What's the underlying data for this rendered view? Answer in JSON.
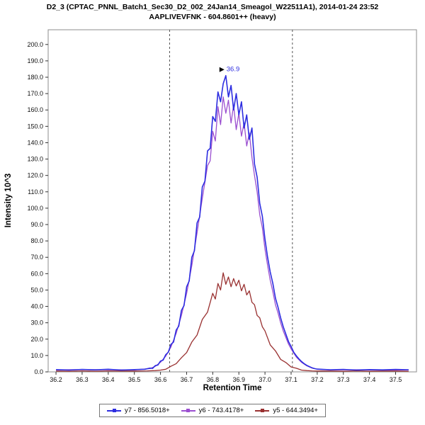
{
  "title": {
    "line1": "D2_3 (CPTAC_PNNL_Batch1_Sec30_D2_002_24Jan14_Smeagol_W22511A1), 2014-01-24 23:52",
    "line2": "AAPLIVEVFNK - 604.8601++ (heavy)"
  },
  "chart_data": {
    "type": "line",
    "title": "D2_3 (CPTAC_PNNL_Batch1_Sec30_D2_002_24Jan14_Smeagol_W22511A1), 2014-01-24 23:52 / AAPLIVEVFNK - 604.8601++ (heavy)",
    "xlabel": "Retention Time",
    "ylabel": "Intensity 10^3",
    "xlim": [
      36.17,
      37.58
    ],
    "ylim": [
      0,
      209
    ],
    "x_ticks": [
      36.2,
      36.3,
      36.4,
      36.5,
      36.6,
      36.7,
      36.8,
      36.9,
      37.0,
      37.1,
      37.2,
      37.3,
      37.4,
      37.5
    ],
    "y_ticks": [
      0,
      10,
      20,
      30,
      40,
      50,
      60,
      70,
      80,
      90,
      100,
      110,
      120,
      130,
      140,
      150,
      160,
      170,
      180,
      190,
      200
    ],
    "grid": false,
    "legend_position": "bottom",
    "boundaries": [
      36.635,
      37.105
    ],
    "boundary_color": "#555555",
    "annotation": {
      "x": 36.85,
      "y": 181,
      "label": "36.9",
      "label_color": "#2d2de0",
      "marker_color": "#000000"
    },
    "series": [
      {
        "name": "y7 - 856.5018+",
        "color": "#2d2de0",
        "points": [
          [
            36.2,
            1.4
          ],
          [
            36.25,
            1.1
          ],
          [
            36.3,
            1.5
          ],
          [
            36.35,
            1.2
          ],
          [
            36.4,
            1.6
          ],
          [
            36.45,
            1.1
          ],
          [
            36.5,
            1.4
          ],
          [
            36.54,
            1.6
          ],
          [
            36.56,
            2.3
          ],
          [
            36.57,
            2.1
          ],
          [
            36.58,
            3.8
          ],
          [
            36.59,
            4.2
          ],
          [
            36.6,
            6.6
          ],
          [
            36.61,
            7.2
          ],
          [
            36.62,
            10.5
          ],
          [
            36.63,
            12.0
          ],
          [
            36.64,
            16.8
          ],
          [
            36.65,
            18.2
          ],
          [
            36.66,
            25.5
          ],
          [
            36.67,
            28.0
          ],
          [
            36.68,
            37.5
          ],
          [
            36.69,
            40.5
          ],
          [
            36.7,
            52.0
          ],
          [
            36.71,
            55.5
          ],
          [
            36.72,
            70.0
          ],
          [
            36.73,
            74.0
          ],
          [
            36.74,
            91.0
          ],
          [
            36.75,
            94.5
          ],
          [
            36.76,
            113.0
          ],
          [
            36.77,
            116.5
          ],
          [
            36.78,
            135.0
          ],
          [
            36.79,
            136.5
          ],
          [
            36.8,
            156.0
          ],
          [
            36.81,
            153.0
          ],
          [
            36.82,
            171.0
          ],
          [
            36.83,
            165.0
          ],
          [
            36.84,
            176.0
          ],
          [
            36.85,
            181.0
          ],
          [
            36.86,
            168.0
          ],
          [
            36.87,
            175.0
          ],
          [
            36.88,
            160.0
          ],
          [
            36.89,
            170.0
          ],
          [
            36.9,
            157.0
          ],
          [
            36.91,
            165.0
          ],
          [
            36.92,
            149.0
          ],
          [
            36.93,
            157.0
          ],
          [
            36.94,
            142.0
          ],
          [
            36.95,
            149.0
          ],
          [
            36.96,
            127.0
          ],
          [
            36.97,
            119.0
          ],
          [
            36.98,
            103.0
          ],
          [
            36.99,
            95.0
          ],
          [
            37.0,
            81.0
          ],
          [
            37.01,
            70.0
          ],
          [
            37.02,
            61.0
          ],
          [
            37.03,
            54.0
          ],
          [
            37.04,
            45.0
          ],
          [
            37.05,
            39.5
          ],
          [
            37.06,
            33.0
          ],
          [
            37.07,
            27.5
          ],
          [
            37.08,
            23.0
          ],
          [
            37.09,
            18.5
          ],
          [
            37.1,
            15.5
          ],
          [
            37.11,
            12.0
          ],
          [
            37.12,
            9.8
          ],
          [
            37.13,
            7.9
          ],
          [
            37.14,
            6.3
          ],
          [
            37.15,
            5.0
          ],
          [
            37.16,
            4.0
          ],
          [
            37.17,
            3.2
          ],
          [
            37.18,
            2.5
          ],
          [
            37.19,
            2.0
          ],
          [
            37.2,
            1.7
          ],
          [
            37.25,
            1.3
          ],
          [
            37.3,
            1.5
          ],
          [
            37.35,
            1.1
          ],
          [
            37.4,
            1.4
          ],
          [
            37.45,
            1.2
          ],
          [
            37.5,
            1.5
          ],
          [
            37.55,
            1.3
          ]
        ]
      },
      {
        "name": "y6 - 743.4178+",
        "color": "#9b4fd0",
        "points": [
          [
            36.2,
            1.2
          ],
          [
            36.3,
            1.4
          ],
          [
            36.4,
            1.3
          ],
          [
            36.5,
            1.2
          ],
          [
            36.56,
            2.0
          ],
          [
            36.58,
            3.4
          ],
          [
            36.6,
            5.9
          ],
          [
            36.62,
            9.6
          ],
          [
            36.64,
            15.2
          ],
          [
            36.66,
            23.5
          ],
          [
            36.68,
            34.5
          ],
          [
            36.7,
            48.0
          ],
          [
            36.72,
            65.0
          ],
          [
            36.74,
            85.0
          ],
          [
            36.76,
            106.0
          ],
          [
            36.78,
            126.0
          ],
          [
            36.79,
            129.0
          ],
          [
            36.8,
            147.0
          ],
          [
            36.81,
            141.0
          ],
          [
            36.82,
            162.0
          ],
          [
            36.83,
            151.0
          ],
          [
            36.84,
            168.0
          ],
          [
            36.85,
            158.0
          ],
          [
            36.86,
            166.0
          ],
          [
            36.87,
            152.0
          ],
          [
            36.88,
            163.0
          ],
          [
            36.89,
            148.0
          ],
          [
            36.9,
            158.0
          ],
          [
            36.91,
            144.0
          ],
          [
            36.92,
            152.0
          ],
          [
            36.93,
            138.0
          ],
          [
            36.94,
            146.0
          ],
          [
            36.95,
            131.0
          ],
          [
            36.96,
            120.0
          ],
          [
            36.97,
            110.0
          ],
          [
            36.98,
            96.0
          ],
          [
            36.99,
            88.0
          ],
          [
            37.0,
            75.0
          ],
          [
            37.01,
            65.0
          ],
          [
            37.02,
            56.0
          ],
          [
            37.03,
            49.0
          ],
          [
            37.04,
            41.0
          ],
          [
            37.05,
            36.0
          ],
          [
            37.06,
            30.0
          ],
          [
            37.07,
            25.0
          ],
          [
            37.08,
            21.0
          ],
          [
            37.09,
            17.0
          ],
          [
            37.1,
            14.0
          ],
          [
            37.12,
            9.0
          ],
          [
            37.14,
            5.8
          ],
          [
            37.16,
            3.7
          ],
          [
            37.18,
            2.3
          ],
          [
            37.2,
            1.6
          ],
          [
            37.25,
            1.2
          ],
          [
            37.35,
            1.3
          ],
          [
            37.45,
            1.1
          ],
          [
            37.55,
            1.2
          ]
        ]
      },
      {
        "name": "y5 - 644.3494+",
        "color": "#993030",
        "points": [
          [
            36.2,
            0.5
          ],
          [
            36.25,
            0.4
          ],
          [
            36.3,
            0.6
          ],
          [
            36.35,
            0.4
          ],
          [
            36.4,
            0.6
          ],
          [
            36.45,
            0.5
          ],
          [
            36.5,
            0.5
          ],
          [
            36.55,
            0.6
          ],
          [
            36.58,
            0.8
          ],
          [
            36.6,
            1.1
          ],
          [
            36.62,
            1.6
          ],
          [
            36.64,
            3.4
          ],
          [
            36.66,
            5.0
          ],
          [
            36.68,
            8.6
          ],
          [
            36.7,
            11.8
          ],
          [
            36.72,
            18.2
          ],
          [
            36.74,
            22.5
          ],
          [
            36.76,
            32.0
          ],
          [
            36.78,
            36.5
          ],
          [
            36.8,
            48.0
          ],
          [
            36.81,
            44.5
          ],
          [
            36.82,
            54.0
          ],
          [
            36.83,
            50.0
          ],
          [
            36.84,
            60.5
          ],
          [
            36.85,
            53.5
          ],
          [
            36.86,
            58.0
          ],
          [
            36.87,
            52.0
          ],
          [
            36.88,
            57.0
          ],
          [
            36.89,
            52.5
          ],
          [
            36.9,
            56.0
          ],
          [
            36.91,
            49.5
          ],
          [
            36.92,
            53.5
          ],
          [
            36.93,
            47.0
          ],
          [
            36.94,
            49.5
          ],
          [
            36.95,
            42.5
          ],
          [
            36.96,
            41.0
          ],
          [
            36.97,
            34.5
          ],
          [
            36.98,
            33.0
          ],
          [
            36.99,
            27.5
          ],
          [
            37.0,
            25.0
          ],
          [
            37.02,
            16.5
          ],
          [
            37.04,
            12.8
          ],
          [
            37.06,
            7.6
          ],
          [
            37.08,
            5.7
          ],
          [
            37.1,
            3.0
          ],
          [
            37.12,
            2.2
          ],
          [
            37.14,
            1.1
          ],
          [
            37.16,
            0.8
          ],
          [
            37.18,
            0.6
          ],
          [
            37.2,
            0.5
          ],
          [
            37.25,
            0.5
          ],
          [
            37.3,
            0.4
          ],
          [
            37.35,
            0.6
          ],
          [
            37.4,
            0.4
          ],
          [
            37.45,
            0.5
          ],
          [
            37.5,
            0.5
          ],
          [
            37.55,
            0.4
          ]
        ]
      }
    ]
  }
}
